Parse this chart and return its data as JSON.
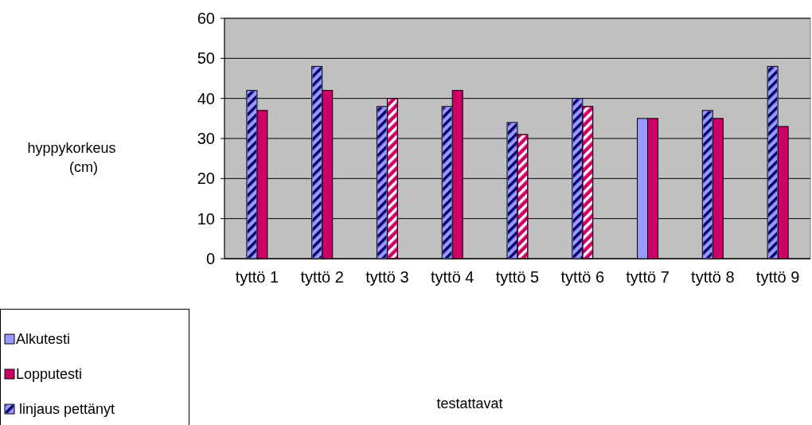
{
  "chart_data": {
    "type": "bar",
    "categories": [
      "tyttö 1",
      "tyttö 2",
      "tyttö 3",
      "tyttö 4",
      "tyttö 5",
      "tyttö 6",
      "tyttö 7",
      "tyttö 8",
      "tyttö 9"
    ],
    "series": [
      {
        "name": "Alkutesti",
        "color": "#9999ff",
        "values": [
          null,
          null,
          null,
          null,
          null,
          null,
          35,
          null,
          null
        ]
      },
      {
        "name": "Lopputesti",
        "color": "#cc0066",
        "values": [
          37,
          42,
          null,
          42,
          null,
          null,
          35,
          35,
          33
        ]
      },
      {
        "name": "linjaus pettänyt",
        "color": "#9999ff",
        "values": [
          42,
          48,
          38,
          38,
          34,
          40,
          null,
          37,
          48
        ]
      },
      {
        "color": "#cc0066",
        "values": [
          null,
          null,
          40,
          null,
          31,
          38,
          null,
          null,
          null
        ]
      }
    ],
    "annotations": [
      "hyppykorkeus\n(cm)",
      "testattavat"
    ],
    "ylim": [
      0,
      60
    ],
    "yticks": [
      0,
      10,
      20,
      30,
      40,
      50,
      60
    ],
    "grid": "y",
    "legend": "bottom left"
  }
}
